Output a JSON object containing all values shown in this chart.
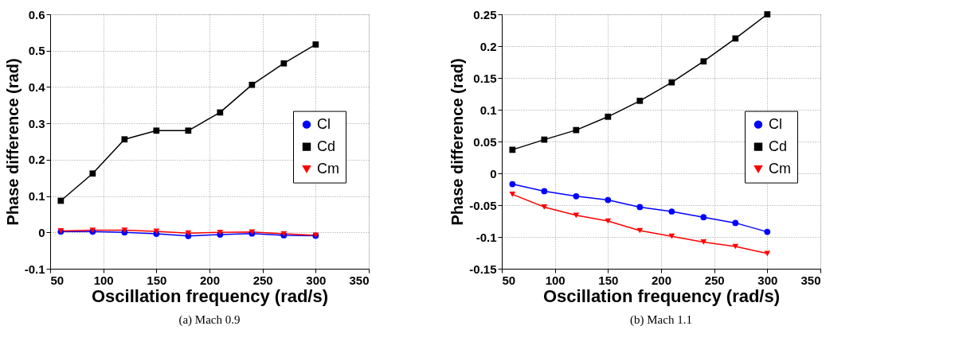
{
  "chart_data": [
    {
      "type": "line",
      "xlabel": "Oscillation frequency (rad/s)",
      "ylabel": "Phase difference (rad)",
      "annotations": [
        "(a) Mach 0.9"
      ],
      "x": [
        60,
        90,
        120,
        150,
        180,
        210,
        240,
        270,
        300
      ],
      "series": [
        {
          "name": "Cl",
          "color": "#0000ff",
          "marker": "circle",
          "values": [
            0.002,
            0.002,
            0.0,
            -0.004,
            -0.01,
            -0.006,
            -0.003,
            -0.008,
            -0.009
          ]
        },
        {
          "name": "Cd",
          "color": "#000000",
          "marker": "square",
          "values": [
            0.087,
            0.162,
            0.256,
            0.28,
            0.28,
            0.33,
            0.406,
            0.465,
            0.517
          ]
        },
        {
          "name": "Cm",
          "color": "#ff0000",
          "marker": "triangle",
          "values": [
            0.004,
            0.006,
            0.006,
            0.003,
            -0.002,
            0.0,
            0.001,
            -0.004,
            -0.008
          ]
        }
      ],
      "xlim": [
        50,
        350
      ],
      "xticks": [
        50,
        100,
        150,
        200,
        250,
        300,
        350
      ],
      "ylim": [
        -0.1,
        0.6
      ],
      "yticks": [
        -0.1,
        0,
        0.1,
        0.2,
        0.3,
        0.4,
        0.5,
        0.6
      ],
      "grid": true,
      "legend": "right",
      "line_style": "solid"
    },
    {
      "type": "line",
      "xlabel": "Oscillation frequency (rad/s)",
      "ylabel": "Phase difference (rad)",
      "annotations": [
        "(b) Mach 1.1"
      ],
      "x": [
        60,
        90,
        120,
        150,
        180,
        210,
        240,
        270,
        300
      ],
      "series": [
        {
          "name": "Cl",
          "color": "#0000ff",
          "marker": "circle",
          "values": [
            -0.017,
            -0.028,
            -0.036,
            -0.042,
            -0.053,
            -0.06,
            -0.069,
            -0.078,
            -0.092
          ]
        },
        {
          "name": "Cd",
          "color": "#000000",
          "marker": "square",
          "values": [
            0.037,
            0.053,
            0.068,
            0.089,
            0.114,
            0.143,
            0.176,
            0.212,
            0.25
          ]
        },
        {
          "name": "Cm",
          "color": "#ff0000",
          "marker": "triangle",
          "values": [
            -0.033,
            -0.053,
            -0.066,
            -0.075,
            -0.09,
            -0.099,
            -0.108,
            -0.115,
            -0.126
          ]
        }
      ],
      "xlim": [
        50,
        350
      ],
      "xticks": [
        50,
        100,
        150,
        200,
        250,
        300,
        350
      ],
      "ylim": [
        -0.15,
        0.25
      ],
      "yticks": [
        -0.15,
        -0.1,
        -0.05,
        0,
        0.05,
        0.1,
        0.15,
        0.2,
        0.25
      ],
      "grid": true,
      "legend": "right",
      "line_style": "solid"
    }
  ]
}
